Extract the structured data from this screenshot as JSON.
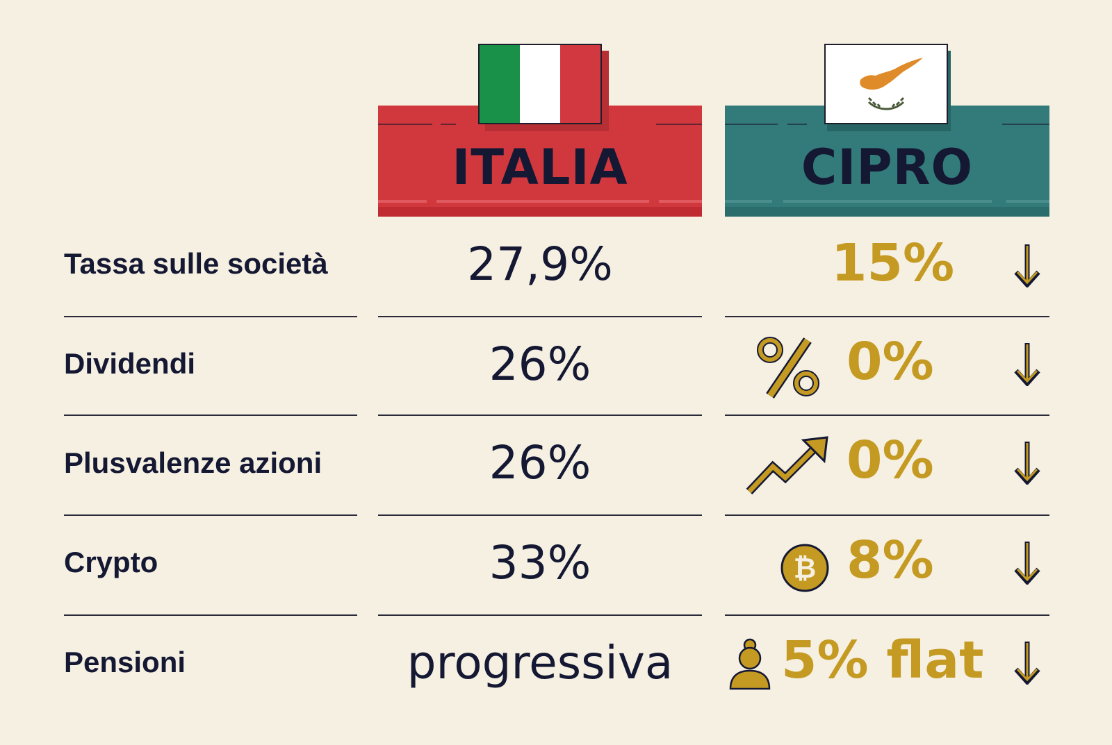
{
  "columns": {
    "italy": {
      "title": "ITALIA",
      "flag_icon": "italy-flag-icon",
      "color": "#d1383e"
    },
    "cyprus": {
      "title": "CIPRO",
      "flag_icon": "cyprus-flag-icon",
      "color": "#337a7a"
    }
  },
  "rows": [
    {
      "label": "Tassa sulle società",
      "italy": "27,9%",
      "cyprus": "15%",
      "cyprus_icon": ""
    },
    {
      "label": "Dividendi",
      "italy": "26%",
      "cyprus": "0%",
      "cyprus_icon": "percent-icon"
    },
    {
      "label": "Plusvalenze azioni",
      "italy": "26%",
      "cyprus": "0%",
      "cyprus_icon": "trend-up-icon"
    },
    {
      "label": "Crypto",
      "italy": "33%",
      "cyprus": "8%",
      "cyprus_icon": "bitcoin-icon"
    },
    {
      "label": "Pensioni",
      "italy": "progressiva",
      "cyprus": "5% flat",
      "cyprus_icon": "person-icon"
    }
  ],
  "indicator_icon": "arrow-down-icon",
  "colors": {
    "background": "#f6f0e2",
    "text": "#141833",
    "accent": "#c49a22"
  }
}
